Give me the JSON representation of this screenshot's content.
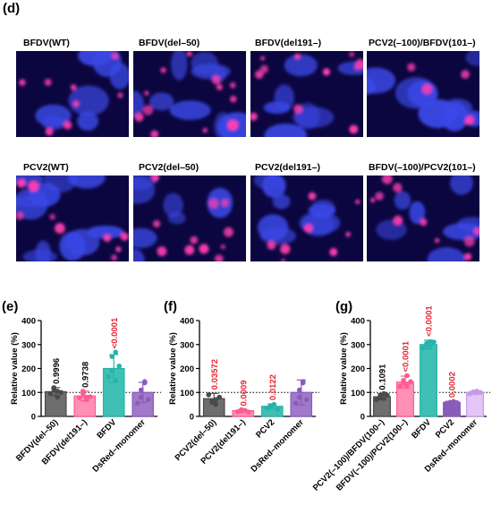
{
  "panel_d": {
    "letter": "(d)",
    "images": [
      {
        "label": "BFDV(WT)"
      },
      {
        "label": "BFDV(del–50)"
      },
      {
        "label": "BFDV(del191–)"
      },
      {
        "label": "PCV2(–100)/BFDV(101–)"
      },
      {
        "label": "PCV2(WT)"
      },
      {
        "label": "PCV2(del–50)"
      },
      {
        "label": "PCV2(del191–)"
      },
      {
        "label": "BFDV(–100)/PCV2(101–)"
      }
    ],
    "colors": {
      "background": "#0c0640",
      "nucleus": "#3a48e6",
      "dsred": "#ff3fb0"
    }
  },
  "chart_data": [
    {
      "type": "bar",
      "panel": "(e)",
      "categories": [
        "BFDV(del–50)",
        "BFDV(del191–)",
        "BFDV",
        "DsRed–monomer"
      ],
      "values": [
        103,
        85,
        200,
        100
      ],
      "errors": [
        17,
        20,
        58,
        42
      ],
      "points": [
        [
          95,
          112,
          80,
          120,
          105,
          100
        ],
        [
          78,
          95,
          70,
          105,
          80,
          82
        ],
        [
          165,
          250,
          268,
          190,
          150,
          210
        ],
        [
          55,
          110,
          145,
          80,
          140,
          70
        ]
      ],
      "pvalues": [
        "0.9996",
        "0.9738",
        "<0.0001",
        ""
      ],
      "pvalue_colors": [
        "#000000",
        "#000000",
        "#e8212f",
        ""
      ],
      "colors": [
        "#4a4a4a",
        "#ff5c91",
        "#27b3a8",
        "#8b5bbb"
      ],
      "fill_colors": [
        "#6e6e6e",
        "#ff8fb4",
        "#3fbfb5",
        "#a079c9"
      ],
      "ylabel": "Relative value (%)",
      "ylim": [
        0,
        400
      ],
      "yticks": [
        0,
        100,
        200,
        300,
        400
      ],
      "reference_line": 100
    },
    {
      "type": "bar",
      "panel": "(f)",
      "categories": [
        "PCV2(del–50)",
        "PCV2(del191–)",
        "PCV2",
        "DsRed–monomer"
      ],
      "values": [
        74,
        24,
        42,
        100
      ],
      "errors": [
        22,
        4,
        10,
        52
      ],
      "points": [
        [
          90,
          60,
          70,
          65,
          50,
          80
        ],
        [
          20,
          22,
          25,
          28,
          24,
          18
        ],
        [
          35,
          45,
          50,
          38,
          48,
          30
        ],
        [
          55,
          110,
          145,
          80,
          140,
          70
        ]
      ],
      "pvalues": [
        "0.03572",
        "0.0009",
        "0.0122",
        ""
      ],
      "pvalue_colors": [
        "#e8212f",
        "#e8212f",
        "#e8212f",
        ""
      ],
      "colors": [
        "#4a4a4a",
        "#ff5c91",
        "#27b3a8",
        "#8b5bbb"
      ],
      "fill_colors": [
        "#6e6e6e",
        "#ff8fb4",
        "#3fbfb5",
        "#a079c9"
      ],
      "ylabel": "Relative value (%)",
      "ylim": [
        0,
        400
      ],
      "yticks": [
        0,
        100,
        200,
        300,
        400
      ],
      "reference_line": 100
    },
    {
      "type": "bar",
      "panel": "(g)",
      "categories": [
        "PCV2(–100)/BFDV(100–)",
        "BFDV(–100)/PCV2(100–)",
        "BFDV",
        "PCV2",
        "DsRed–monomer"
      ],
      "values": [
        82,
        143,
        300,
        58,
        100
      ],
      "errors": [
        13,
        25,
        18,
        5,
        6
      ],
      "points": [
        [
          70,
          85,
          95,
          80,
          75,
          88
        ],
        [
          125,
          150,
          170,
          140,
          130,
          145
        ],
        [
          285,
          300,
          312,
          305,
          295,
          310
        ],
        [
          55,
          58,
          60,
          56,
          62,
          57
        ],
        [
          95,
          100,
          105,
          102,
          98,
          100
        ]
      ],
      "pvalues": [
        "0.1091",
        "<0.0001",
        "<0.0001",
        "0.0002",
        ""
      ],
      "pvalue_colors": [
        "#000000",
        "#e8212f",
        "#e8212f",
        "#e8212f",
        ""
      ],
      "colors": [
        "#4a4a4a",
        "#ff5c91",
        "#27b3a8",
        "#8b5bbb",
        "#c79ae8"
      ],
      "fill_colors": [
        "#6e6e6e",
        "#ff8fb4",
        "#3fbfb5",
        "#8b5bbb",
        "#e3c6f7"
      ],
      "ylabel": "Relative value (%)",
      "ylim": [
        0,
        400
      ],
      "yticks": [
        0,
        100,
        200,
        300,
        400
      ],
      "reference_line": 100
    }
  ]
}
